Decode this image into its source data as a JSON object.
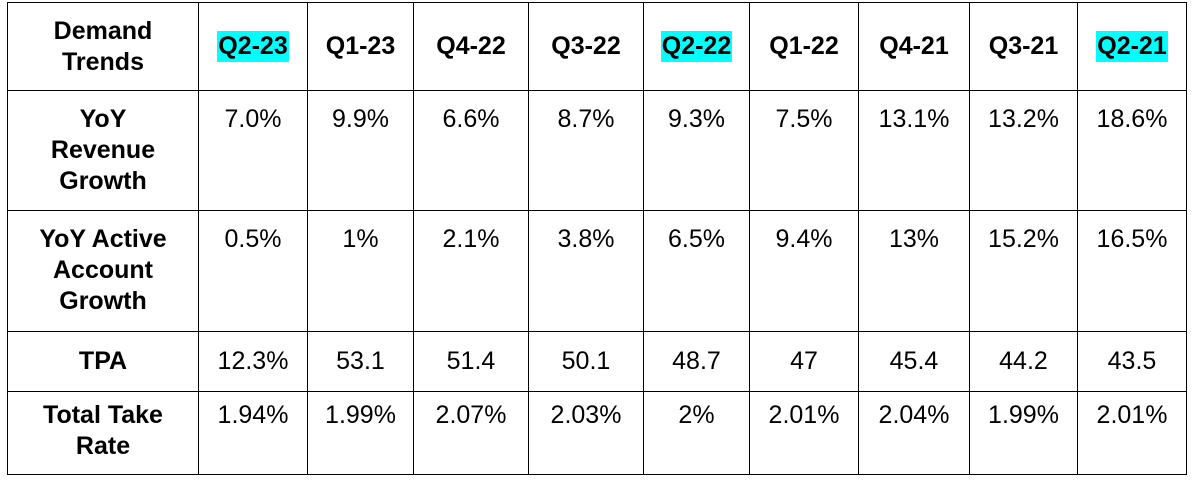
{
  "colors": {
    "highlight": "#00ffff",
    "border": "#000000",
    "background": "#ffffff"
  },
  "table": {
    "corner_label": "Demand Trends",
    "columns": [
      {
        "label": "Q2-23",
        "highlighted": true
      },
      {
        "label": "Q1-23",
        "highlighted": false
      },
      {
        "label": "Q4-22",
        "highlighted": false
      },
      {
        "label": "Q3-22",
        "highlighted": false
      },
      {
        "label": "Q2-22",
        "highlighted": true
      },
      {
        "label": "Q1-22",
        "highlighted": false
      },
      {
        "label": "Q4-21",
        "highlighted": false
      },
      {
        "label": "Q3-21",
        "highlighted": false
      },
      {
        "label": "Q2-21",
        "highlighted": true
      }
    ],
    "rows": [
      {
        "label": "YoY Revenue Growth",
        "values": [
          "7.0%",
          "9.9%",
          "6.6%",
          "8.7%",
          "9.3%",
          "7.5%",
          "13.1%",
          "13.2%",
          "18.6%"
        ]
      },
      {
        "label": "YoY Active Account Growth",
        "values": [
          "0.5%",
          "1%",
          "2.1%",
          "3.8%",
          "6.5%",
          "9.4%",
          "13%",
          "15.2%",
          "16.5%"
        ]
      },
      {
        "label": "TPA",
        "values": [
          "12.3%",
          "53.1",
          "51.4",
          "50.1",
          "48.7",
          "47",
          "45.4",
          "44.2",
          "43.5"
        ]
      },
      {
        "label": "Total Take Rate",
        "values": [
          "1.94%",
          "1.99%",
          "2.07%",
          "2.03%",
          "2%",
          "2.01%",
          "2.04%",
          "1.99%",
          "2.01%"
        ]
      }
    ]
  }
}
